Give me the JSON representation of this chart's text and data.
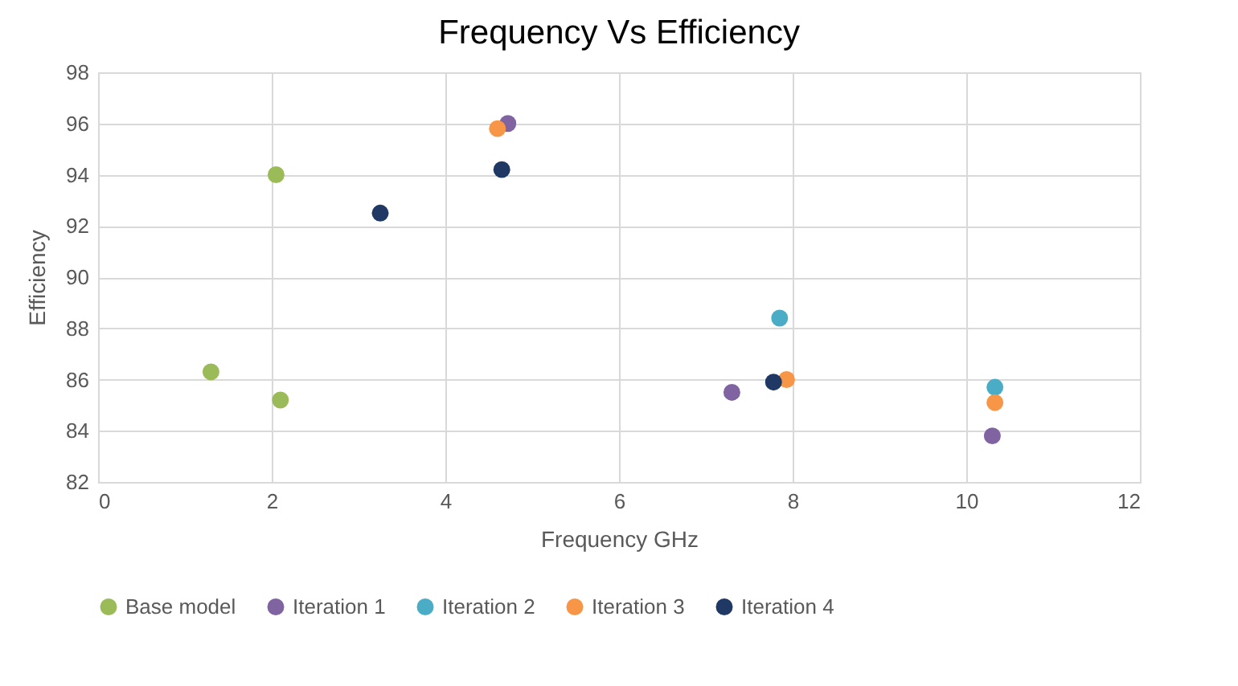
{
  "chart_data": {
    "type": "scatter",
    "title": "Frequency Vs Efficiency",
    "xlabel": "Frequency GHz",
    "ylabel": "Efficiency",
    "xlim": [
      0,
      12
    ],
    "xticks": [
      0,
      2,
      4,
      6,
      8,
      10,
      12
    ],
    "ylim": [
      82,
      98
    ],
    "yticks": [
      82,
      84,
      86,
      88,
      90,
      92,
      94,
      96,
      98
    ],
    "grid": true,
    "legend": "bottom",
    "marker": "circle",
    "series": [
      {
        "name": "Base model",
        "color": "#9bbb59",
        "x": [
          1.3,
          2.05,
          2.1
        ],
        "values": [
          86.3,
          94.0,
          85.2
        ]
      },
      {
        "name": "Iteration 1",
        "color": "#8064a2",
        "x": [
          4.72,
          7.3,
          10.3
        ],
        "values": [
          96.0,
          85.5,
          83.8
        ]
      },
      {
        "name": "Iteration 2",
        "color": "#4bacc6",
        "x": [
          7.85,
          10.33
        ],
        "values": [
          88.4,
          85.7
        ]
      },
      {
        "name": "Iteration 3",
        "color": "#f79646",
        "x": [
          4.6,
          7.93,
          10.33
        ],
        "values": [
          95.8,
          86.0,
          85.1
        ]
      },
      {
        "name": "Iteration 4",
        "color": "#1f3864",
        "x": [
          3.25,
          4.65,
          7.78
        ],
        "values": [
          92.5,
          94.2,
          85.9
        ]
      }
    ]
  }
}
